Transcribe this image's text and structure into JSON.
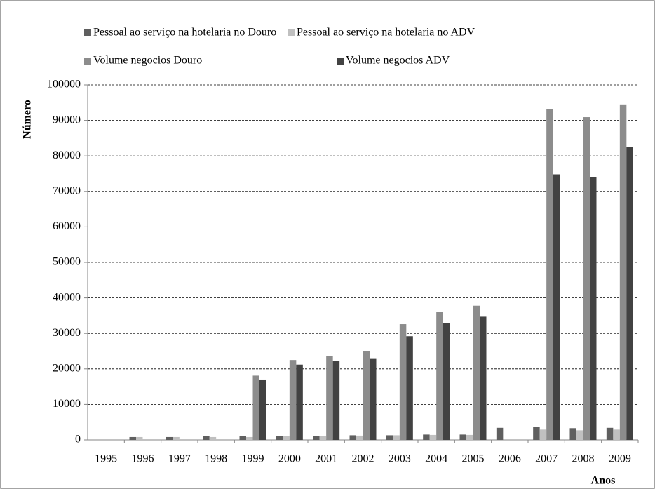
{
  "chart_data": {
    "type": "bar",
    "x_label": "Anos",
    "y_label": "Número",
    "categories": [
      "1995",
      "1996",
      "1997",
      "1998",
      "1999",
      "2000",
      "2001",
      "2002",
      "2003",
      "2004",
      "2005",
      "2006",
      "2007",
      "2008",
      "2009"
    ],
    "series": [
      {
        "name": "Pessoal ao serviço na hotelaria no Douro",
        "color": "#5f5f5f",
        "values": [
          null,
          800,
          800,
          1000,
          1000,
          1100,
          1100,
          1300,
          1300,
          1500,
          1500,
          3400,
          3600,
          3300,
          3400
        ]
      },
      {
        "name": "Pessoal ao serviço na hotelaria no ADV",
        "color": "#c0c0c0",
        "values": [
          null,
          800,
          800,
          800,
          800,
          1000,
          1000,
          1200,
          1300,
          1400,
          1400,
          null,
          2900,
          2700,
          2900
        ]
      },
      {
        "name": "Volume negocios Douro",
        "color": "#8c8c8c",
        "values": [
          null,
          null,
          null,
          null,
          18100,
          22500,
          23700,
          24900,
          32600,
          36100,
          37800,
          null,
          93100,
          90900,
          94500
        ]
      },
      {
        "name": "Volume negocios ADV",
        "color": "#424242",
        "values": [
          null,
          null,
          null,
          null,
          17000,
          21200,
          22300,
          23000,
          29200,
          33000,
          34700,
          null,
          74800,
          74100,
          82600
        ]
      }
    ],
    "ylim": [
      0,
      100000
    ],
    "yticks": [
      0,
      10000,
      20000,
      30000,
      40000,
      50000,
      60000,
      70000,
      80000,
      90000,
      100000
    ],
    "grid": true
  }
}
